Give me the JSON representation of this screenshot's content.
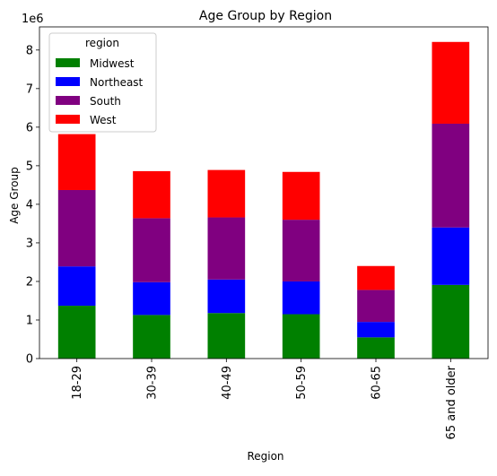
{
  "chart_data": {
    "type": "bar",
    "stacked": true,
    "title": "Age Group by Region",
    "xlabel": "Region",
    "ylabel": "Age Group",
    "offset_text": "1e6",
    "categories": [
      "18-29",
      "30-39",
      "40-49",
      "50-59",
      "60-65",
      "65 and older"
    ],
    "ylim": [
      0,
      8.6
    ],
    "yticks": [
      0,
      1,
      2,
      3,
      4,
      5,
      6,
      7,
      8
    ],
    "ytick_labels": [
      "0",
      "1",
      "2",
      "3",
      "4",
      "5",
      "6",
      "7",
      "8"
    ],
    "unit_multiplier": 1000000,
    "legend": {
      "title": "region",
      "placement": "upper-left"
    },
    "grid": false,
    "series": [
      {
        "name": "Midwest",
        "color": "#008000",
        "values": [
          1.37,
          1.13,
          1.18,
          1.15,
          0.55,
          1.91
        ]
      },
      {
        "name": "Northeast",
        "color": "#0000ff",
        "values": [
          1.02,
          0.85,
          0.87,
          0.85,
          0.4,
          1.49
        ]
      },
      {
        "name": "South",
        "color": "#800080",
        "values": [
          1.98,
          1.66,
          1.61,
          1.6,
          0.83,
          2.69
        ]
      },
      {
        "name": "West",
        "color": "#ff0000",
        "values": [
          1.45,
          1.22,
          1.23,
          1.24,
          0.62,
          2.12
        ]
      }
    ]
  }
}
